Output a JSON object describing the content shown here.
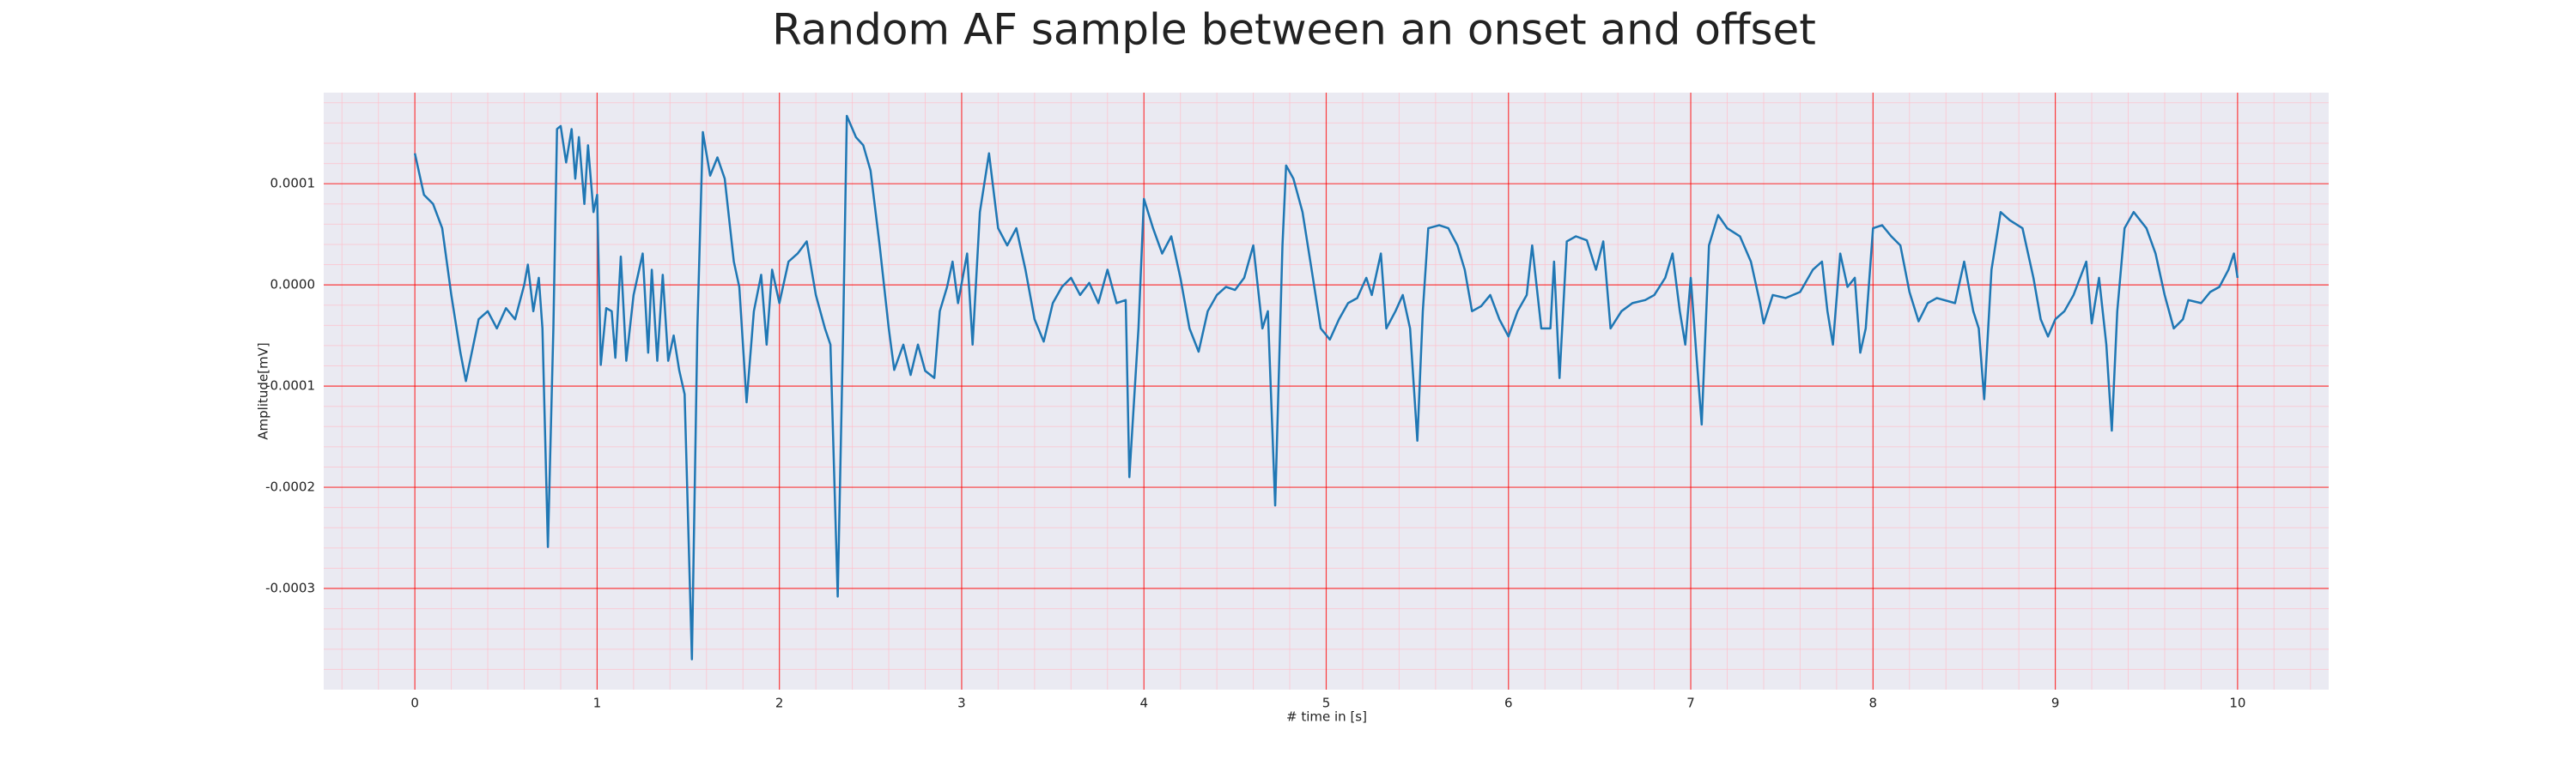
{
  "chart_data": {
    "type": "line",
    "title": "Random AF sample between an onset and offset",
    "xlabel": "# time in [s]",
    "ylabel": "Amplitude[mV]",
    "x": [
      0,
      0.05,
      0.1,
      0.15,
      0.2,
      0.25,
      0.28,
      0.35,
      0.4,
      0.45,
      0.5,
      0.55,
      0.6,
      0.62,
      0.65,
      0.68,
      0.7,
      0.73,
      0.76,
      0.78,
      0.8,
      0.83,
      0.86,
      0.88,
      0.9,
      0.93,
      0.95,
      0.98,
      1.0,
      1.02,
      1.05,
      1.08,
      1.1,
      1.13,
      1.16,
      1.2,
      1.25,
      1.28,
      1.3,
      1.33,
      1.36,
      1.39,
      1.42,
      1.45,
      1.48,
      1.52,
      1.55,
      1.58,
      1.62,
      1.66,
      1.7,
      1.75,
      1.78,
      1.82,
      1.86,
      1.9,
      1.93,
      1.96,
      2.0,
      2.05,
      2.1,
      2.15,
      2.2,
      2.25,
      2.28,
      2.32,
      2.35,
      2.37,
      2.42,
      2.46,
      2.5,
      2.55,
      2.6,
      2.63,
      2.68,
      2.72,
      2.76,
      2.8,
      2.85,
      2.88,
      2.92,
      2.95,
      2.98,
      3.03,
      3.06,
      3.1,
      3.15,
      3.2,
      3.25,
      3.3,
      3.35,
      3.4,
      3.45,
      3.5,
      3.55,
      3.6,
      3.65,
      3.7,
      3.75,
      3.8,
      3.85,
      3.9,
      3.92,
      3.97,
      4.0,
      4.05,
      4.1,
      4.15,
      4.2,
      4.25,
      4.3,
      4.35,
      4.4,
      4.45,
      4.5,
      4.55,
      4.6,
      4.65,
      4.68,
      4.72,
      4.76,
      4.78,
      4.82,
      4.87,
      4.92,
      4.97,
      5.02,
      5.07,
      5.12,
      5.17,
      5.22,
      5.25,
      5.3,
      5.33,
      5.38,
      5.42,
      5.46,
      5.5,
      5.53,
      5.56,
      5.62,
      5.67,
      5.72,
      5.76,
      5.8,
      5.85,
      5.9,
      5.95,
      6.0,
      6.05,
      6.1,
      6.13,
      6.18,
      6.23,
      6.25,
      6.28,
      6.32,
      6.37,
      6.43,
      6.48,
      6.52,
      6.56,
      6.62,
      6.68,
      6.75,
      6.8,
      6.86,
      6.9,
      6.94,
      6.97,
      7.0,
      7.03,
      7.06,
      7.1,
      7.15,
      7.2,
      7.27,
      7.33,
      7.38,
      7.4,
      7.45,
      7.52,
      7.6,
      7.67,
      7.72,
      7.75,
      7.78,
      7.82,
      7.86,
      7.9,
      7.93,
      7.96,
      8.0,
      8.05,
      8.1,
      8.15,
      8.2,
      8.25,
      8.3,
      8.35,
      8.45,
      8.5,
      8.55,
      8.58,
      8.61,
      8.65,
      8.7,
      8.75,
      8.82,
      8.88,
      8.92,
      8.96,
      9.0,
      9.05,
      9.1,
      9.17,
      9.2,
      9.24,
      9.28,
      9.31,
      9.34,
      9.38,
      9.43,
      9.5,
      9.55,
      9.6,
      9.65,
      9.7,
      9.73,
      9.8,
      9.85,
      9.9,
      9.95,
      9.98,
      10.0
    ],
    "series": [
      {
        "color": "#1f77b4",
        "values": [
          0.00013,
          8.9e-05,
          8e-05,
          5.6e-05,
          -1e-05,
          -6.7e-05,
          -9.5e-05,
          -3.4e-05,
          -2.6e-05,
          -4.3e-05,
          -2.3e-05,
          -3.4e-05,
          0,
          2e-05,
          -2.6e-05,
          7e-06,
          -4.3e-05,
          -0.000259,
          -4.3e-05,
          0.000154,
          0.000157,
          0.000121,
          0.000154,
          0.000105,
          0.000146,
          8e-05,
          0.000138,
          7.2e-05,
          8.9e-05,
          -7.9e-05,
          -2.3e-05,
          -2.6e-05,
          -7.2e-05,
          2.8e-05,
          -7.5e-05,
          -1e-05,
          3.1e-05,
          -6.7e-05,
          1.5e-05,
          -7.5e-05,
          1e-05,
          -7.5e-05,
          -5e-05,
          -8.4e-05,
          -0.000108,
          -0.00037,
          -4.3e-05,
          0.000151,
          0.000108,
          0.000126,
          0.000105,
          2.3e-05,
          -2e-06,
          -0.000116,
          -2.6e-05,
          1e-05,
          -5.9e-05,
          1.5e-05,
          -1.8e-05,
          2.3e-05,
          3.1e-05,
          4.3e-05,
          -1e-05,
          -4.3e-05,
          -5.9e-05,
          -0.000308,
          -4.3e-05,
          0.000167,
          0.000146,
          0.000138,
          0.000113,
          3.9e-05,
          -4.3e-05,
          -8.4e-05,
          -5.9e-05,
          -8.9e-05,
          -5.9e-05,
          -8.5e-05,
          -9.2e-05,
          -2.6e-05,
          -2e-06,
          2.3e-05,
          -1.8e-05,
          3.1e-05,
          -5.9e-05,
          7.2e-05,
          0.00013,
          5.6e-05,
          3.9e-05,
          5.6e-05,
          1.5e-05,
          -3.4e-05,
          -5.6e-05,
          -1.8e-05,
          -2e-06,
          7e-06,
          -1e-05,
          2e-06,
          -1.8e-05,
          1.5e-05,
          -1.8e-05,
          -1.5e-05,
          -0.00019,
          -4.3e-05,
          8.5e-05,
          5.6e-05,
          3.1e-05,
          4.8e-05,
          7e-06,
          -4.3e-05,
          -6.6e-05,
          -2.6e-05,
          -1e-05,
          -2e-06,
          -5e-06,
          7e-06,
          3.9e-05,
          -4.3e-05,
          -2.6e-05,
          -0.000218,
          3.9e-05,
          0.000118,
          0.000105,
          7.2e-05,
          1.5e-05,
          -4.3e-05,
          -5.4e-05,
          -3.4e-05,
          -1.8e-05,
          -1.3e-05,
          7e-06,
          -1e-05,
          3.1e-05,
          -4.3e-05,
          -2.6e-05,
          -1e-05,
          -4.3e-05,
          -0.000154,
          -2.6e-05,
          5.6e-05,
          5.9e-05,
          5.6e-05,
          3.9e-05,
          1.5e-05,
          -2.6e-05,
          -2.1e-05,
          -1e-05,
          -3.4e-05,
          -5.1e-05,
          -2.6e-05,
          -1e-05,
          3.9e-05,
          -4.3e-05,
          -4.3e-05,
          2.3e-05,
          -9.2e-05,
          4.3e-05,
          4.8e-05,
          4.4e-05,
          1.5e-05,
          4.3e-05,
          -4.3e-05,
          -2.6e-05,
          -1.8e-05,
          -1.5e-05,
          -1e-05,
          7e-06,
          3.1e-05,
          -2.6e-05,
          -5.9e-05,
          7e-06,
          -6.7e-05,
          -0.000138,
          3.9e-05,
          6.9e-05,
          5.6e-05,
          4.8e-05,
          2.3e-05,
          -1.8e-05,
          -3.8e-05,
          -1e-05,
          -1.3e-05,
          -7e-06,
          1.5e-05,
          2.3e-05,
          -2.6e-05,
          -5.9e-05,
          3.1e-05,
          -2e-06,
          7e-06,
          -6.7e-05,
          -4.3e-05,
          5.6e-05,
          5.9e-05,
          4.8e-05,
          3.9e-05,
          -7e-06,
          -3.6e-05,
          -1.8e-05,
          -1.3e-05,
          -1.8e-05,
          2.3e-05,
          -2.6e-05,
          -4.3e-05,
          -0.000113,
          1.5e-05,
          7.2e-05,
          6.4e-05,
          5.6e-05,
          7e-06,
          -3.4e-05,
          -5.1e-05,
          -3.4e-05,
          -2.6e-05,
          -1e-05,
          2.3e-05,
          -3.8e-05,
          7e-06,
          -5.9e-05,
          -0.000144,
          -2.6e-05,
          5.6e-05,
          7.2e-05,
          5.6e-05,
          3.1e-05,
          -1e-05,
          -4.3e-05,
          -3.4e-05,
          -1.5e-05,
          -1.8e-05,
          -7e-06,
          -2e-06,
          1.5e-05,
          3.1e-05,
          7e-06
        ]
      }
    ],
    "xlim": [
      -0.5,
      10.5
    ],
    "ylim": [
      -0.0004,
      0.00019
    ],
    "xticks": [
      0,
      1,
      2,
      3,
      4,
      5,
      6,
      7,
      8,
      9,
      10
    ],
    "yticks": [
      -0.0003,
      -0.0002,
      -0.0001,
      {
        "value": 0,
        "label": "0.0000"
      },
      0.0001
    ],
    "background": "#eaeaf2",
    "grid": {
      "major_color": "#ff0000",
      "minor_color": "#ffc0cb",
      "minor_divisions": 5
    }
  }
}
